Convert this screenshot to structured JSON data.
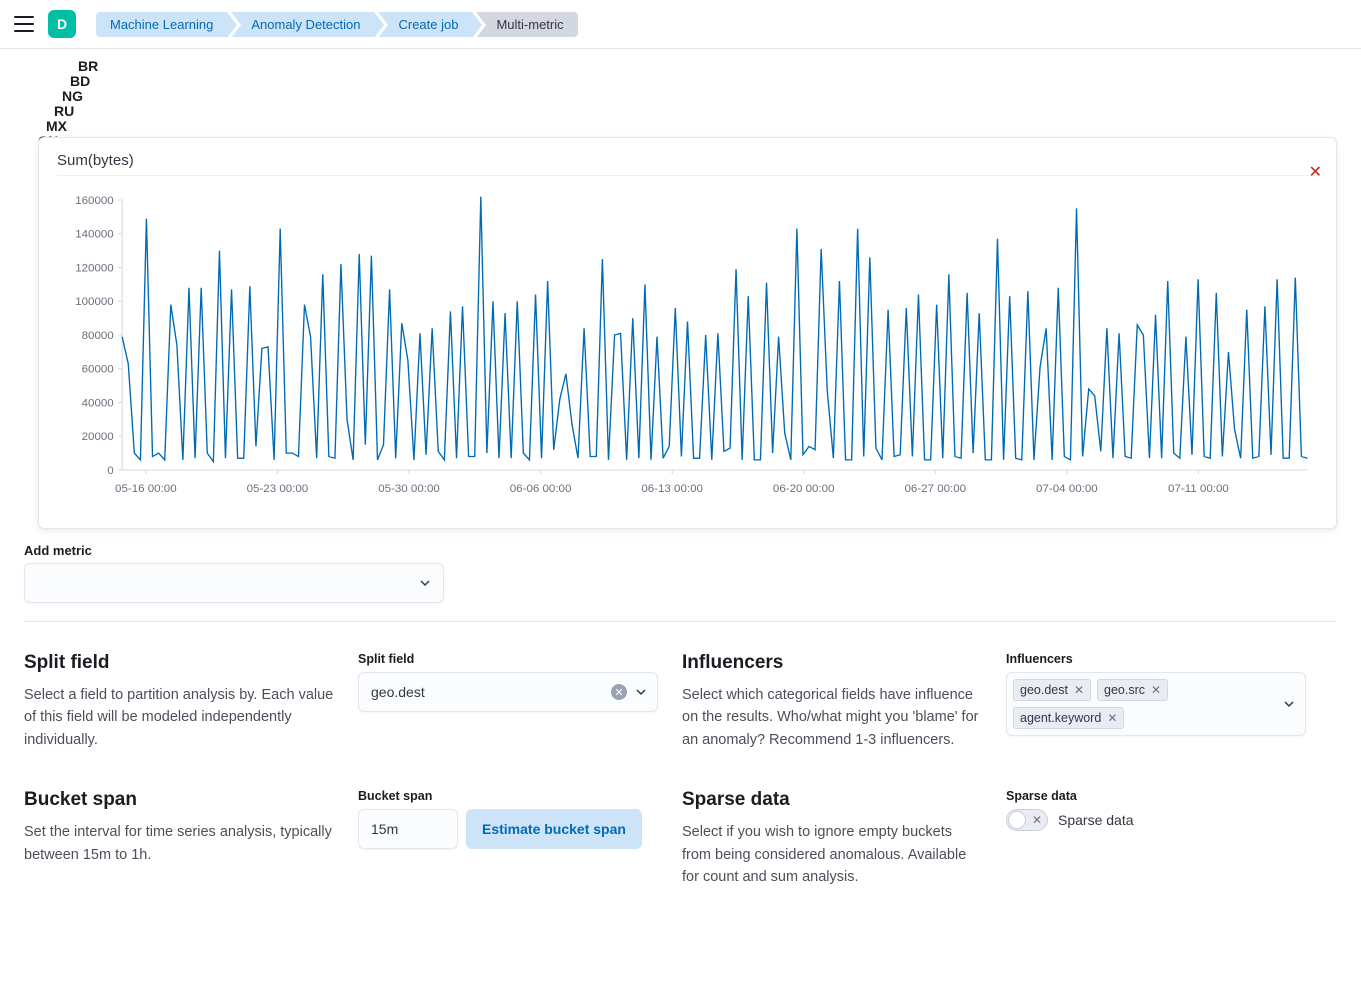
{
  "header": {
    "app_letter": "D",
    "crumbs": [
      "Machine Learning",
      "Anomaly Detection",
      "Create job",
      "Multi-metric"
    ]
  },
  "stack_labels": [
    "BR",
    "BD",
    "NG",
    "RU",
    "MX",
    "CN"
  ],
  "chart": {
    "title": "Sum(bytes)",
    "type": "line",
    "line_color": "#006bb4",
    "line_width": 1.3,
    "axis_color": "#d3d8e0",
    "text_color": "#69707d",
    "background_color": "#ffffff",
    "ylim": [
      0,
      160000
    ],
    "ytick_step": 20000,
    "yticks": [
      "0",
      "20000",
      "40000",
      "60000",
      "80000",
      "100000",
      "120000",
      "140000",
      "160000"
    ],
    "xticks_positions": [
      0.02,
      0.131,
      0.242,
      0.353,
      0.464,
      0.575,
      0.686,
      0.797,
      0.908
    ],
    "xticks": [
      "05-16 00:00",
      "05-23 00:00",
      "05-30 00:00",
      "06-06 00:00",
      "06-13 00:00",
      "06-20 00:00",
      "06-27 00:00",
      "07-04 00:00",
      "07-11 00:00"
    ],
    "values": [
      79000,
      63000,
      10000,
      6000,
      149000,
      8000,
      10000,
      6000,
      98000,
      74000,
      6000,
      108000,
      7000,
      108000,
      10000,
      5000,
      130000,
      7000,
      107000,
      7000,
      7000,
      109000,
      14000,
      72000,
      73000,
      6000,
      143000,
      10000,
      10000,
      8000,
      98000,
      79000,
      7000,
      116000,
      8000,
      7000,
      122000,
      30000,
      6000,
      128000,
      15000,
      127000,
      6000,
      15000,
      107000,
      7000,
      87000,
      65000,
      6000,
      81000,
      9000,
      84000,
      11000,
      6000,
      94000,
      7000,
      97000,
      8000,
      8000,
      162000,
      10000,
      100000,
      7000,
      93000,
      7000,
      100000,
      10000,
      6000,
      104000,
      7000,
      112000,
      12000,
      42000,
      57000,
      27000,
      7000,
      84000,
      8000,
      8000,
      125000,
      6000,
      80000,
      81000,
      6000,
      90000,
      7000,
      110000,
      6000,
      79000,
      7000,
      14000,
      96000,
      8000,
      88000,
      7000,
      7000,
      80000,
      6000,
      81000,
      11000,
      13000,
      119000,
      6000,
      103000,
      6000,
      6000,
      111000,
      10000,
      79000,
      22000,
      6000,
      143000,
      9000,
      14000,
      12000,
      131000,
      47000,
      7000,
      112000,
      6000,
      6000,
      143000,
      8000,
      126000,
      13000,
      6000,
      95000,
      8000,
      9000,
      96000,
      8000,
      104000,
      6000,
      6000,
      98000,
      7000,
      116000,
      8000,
      7000,
      105000,
      10000,
      93000,
      6000,
      6000,
      137000,
      6000,
      103000,
      7000,
      6000,
      106000,
      6000,
      61000,
      84000,
      6000,
      108000,
      8000,
      6000,
      155000,
      8000,
      48000,
      44000,
      11000,
      84000,
      7000,
      81000,
      8000,
      7000,
      86000,
      80000,
      7000,
      92000,
      7000,
      112000,
      10000,
      7000,
      79000,
      9000,
      113000,
      8000,
      7000,
      105000,
      8000,
      70000,
      24000,
      7000,
      95000,
      7000,
      8000,
      97000,
      9000,
      113000,
      7000,
      7000,
      114000,
      8000,
      7000
    ]
  },
  "add_metric": {
    "label": "Add metric"
  },
  "split_field": {
    "title": "Split field",
    "description": "Select a field to partition analysis by. Each value of this field will be modeled independently individually.",
    "input_label": "Split field",
    "value": "geo.dest"
  },
  "influencers": {
    "title": "Influencers",
    "description": "Select which categorical fields have influence on the results. Who/what might you 'blame' for an anomaly? Recommend 1-3 influencers.",
    "input_label": "Influencers",
    "tags": [
      "geo.dest",
      "geo.src",
      "agent.keyword"
    ]
  },
  "bucket_span": {
    "title": "Bucket span",
    "description": "Set the interval for time series analysis, typically between 15m to 1h.",
    "input_label": "Bucket span",
    "value": "15m",
    "button": "Estimate bucket span"
  },
  "sparse": {
    "title": "Sparse data",
    "description": "Select if you wish to ignore empty buckets from being considered anomalous. Available for count and sum analysis.",
    "input_label": "Sparse data",
    "switch_label": "Sparse data",
    "on": false
  }
}
